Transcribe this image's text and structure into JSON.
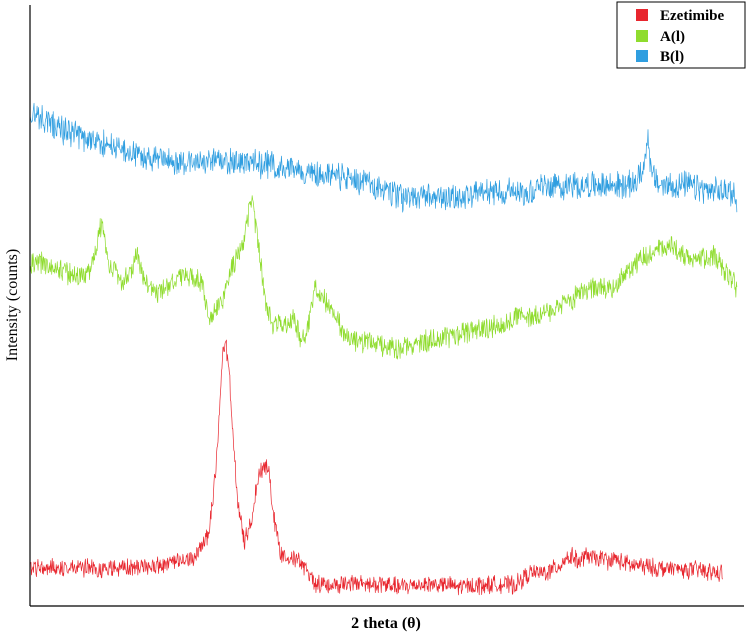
{
  "chart_data": {
    "type": "line",
    "title": "",
    "xlabel": "2 theta (θ)",
    "ylabel": "Intensity (counts)",
    "xlim": [
      0,
      100
    ],
    "ylim": [
      0,
      100
    ],
    "grid": false,
    "legend_position": "top-right",
    "x_ticks_shown": false,
    "y_ticks_shown": false,
    "series": [
      {
        "name": "Ezetimibe",
        "color": "#e8262e",
        "noise": 1.3,
        "x": [
          0,
          5,
          10,
          15,
          20,
          23,
          25,
          26,
          27,
          27.5,
          28,
          29,
          30,
          31,
          32,
          33,
          33.5,
          34,
          35,
          36,
          37,
          38,
          40,
          42,
          45,
          48,
          50,
          52,
          55,
          58,
          60,
          62,
          65,
          68,
          70,
          72,
          74,
          75,
          76,
          77,
          78,
          79,
          80,
          81,
          82,
          84,
          86,
          88,
          90,
          92,
          94,
          96,
          97
        ],
        "y": [
          6.3,
          6.5,
          6.1,
          6.4,
          7.0,
          8.0,
          12,
          22,
          42,
          43,
          37,
          18,
          10.5,
          14,
          22,
          23.5,
          22,
          16,
          9,
          8.5,
          8,
          7,
          3.8,
          3.5,
          3.7,
          3.6,
          3.5,
          3.2,
          3.7,
          3.5,
          3.2,
          3.4,
          3.6,
          3.5,
          5.5,
          5.5,
          6.5,
          8,
          8.2,
          7.3,
          8.5,
          7.8,
          8.0,
          7.5,
          7.8,
          6.8,
          6.6,
          6.3,
          6.2,
          6.0,
          6.0,
          5.5,
          5.4
        ]
      },
      {
        "name": "A(l)",
        "color": "#8fdc2e",
        "noise": 1.6,
        "x": [
          0,
          2,
          4,
          6,
          8,
          9,
          10,
          11,
          13,
          14,
          15,
          16,
          18,
          20,
          22,
          24,
          25,
          27,
          28,
          29,
          30,
          31,
          32,
          33,
          34,
          36,
          37,
          38,
          39,
          40,
          42,
          44,
          46,
          48,
          50,
          52,
          54,
          56,
          58,
          60,
          62,
          64,
          66,
          68,
          70,
          72,
          74,
          75,
          76,
          77,
          78,
          79,
          80,
          81,
          82,
          83,
          84,
          86,
          88,
          90,
          92,
          94,
          96,
          97,
          98,
          99
        ],
        "y": [
          57,
          57,
          56,
          55,
          55,
          58,
          64,
          57,
          54,
          55,
          59,
          54,
          52,
          54,
          55,
          54,
          48,
          51,
          56,
          58,
          61,
          68,
          60,
          50,
          47,
          47,
          48,
          44,
          47,
          53,
          50,
          45,
          44,
          44,
          43,
          43,
          44,
          44,
          45,
          45,
          46,
          46,
          47,
          48,
          48,
          49,
          49,
          51,
          51,
          52,
          52,
          53,
          53,
          53,
          53,
          55,
          56,
          58,
          59,
          60,
          58,
          58,
          58,
          56,
          55,
          53
        ]
      },
      {
        "name": "B(l)",
        "color": "#2f9ee0",
        "noise": 2.0,
        "x": [
          0,
          5,
          10,
          15,
          20,
          25,
          30,
          35,
          40,
          45,
          48,
          50,
          52,
          55,
          60,
          65,
          68,
          70,
          72,
          74,
          76,
          78,
          80,
          82,
          84,
          85,
          86,
          86.5,
          87,
          88,
          89,
          90,
          92,
          95,
          98,
          99
        ],
        "y": [
          82,
          79,
          77,
          75,
          74,
          74,
          74,
          73,
          72,
          71,
          70,
          69,
          68,
          68,
          68,
          69,
          69,
          69,
          70,
          70,
          70,
          70,
          70,
          70,
          70,
          71,
          73,
          79,
          72,
          70,
          70,
          70,
          70,
          69,
          69,
          68
        ]
      }
    ]
  }
}
